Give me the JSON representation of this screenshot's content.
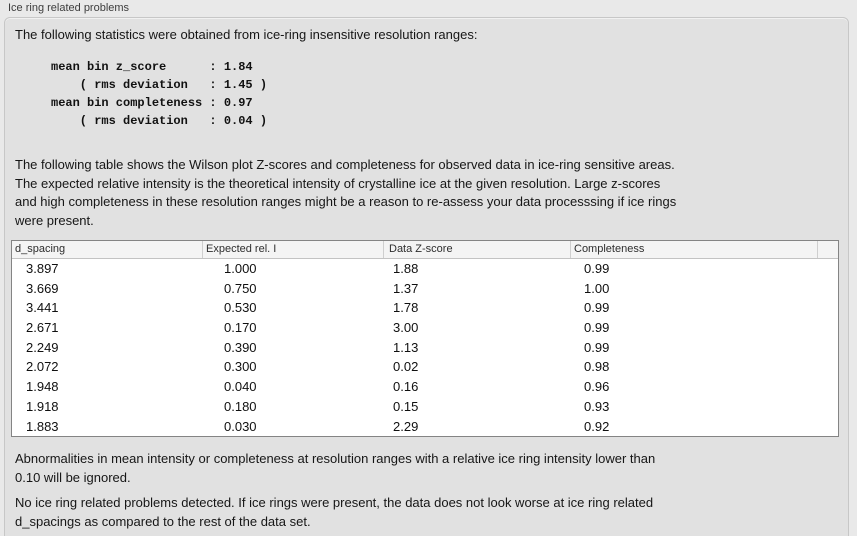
{
  "panel": {
    "title": "Ice ring related problems"
  },
  "stats": {
    "intro": "The following statistics were obtained from ice-ring insensitive resolution ranges:",
    "block": "mean bin z_score      : 1.84\n    ( rms deviation   : 1.45 )\nmean bin completeness : 0.97\n    ( rms deviation   : 0.04 )"
  },
  "description": "The following table shows the Wilson plot Z-scores and completeness for observed data in ice-ring sensitive areas.\nThe expected relative intensity is the theoretical intensity of crystalline ice at the given resolution. Large z-scores\nand high completeness in these resolution ranges might be a reason to re-assess your data processsing if ice rings\nwere present.",
  "table": {
    "headers": [
      "d_spacing",
      "Expected rel. I",
      "Data Z-score",
      "Completeness"
    ],
    "rows": [
      [
        "3.897",
        "1.000",
        "1.88",
        "0.99"
      ],
      [
        "3.669",
        "0.750",
        "1.37",
        "1.00"
      ],
      [
        "3.441",
        "0.530",
        "1.78",
        "0.99"
      ],
      [
        "2.671",
        "0.170",
        "3.00",
        "0.99"
      ],
      [
        "2.249",
        "0.390",
        "1.13",
        "0.99"
      ],
      [
        "2.072",
        "0.300",
        "0.02",
        "0.98"
      ],
      [
        "1.948",
        "0.040",
        "0.16",
        "0.96"
      ],
      [
        "1.918",
        "0.180",
        "0.15",
        "0.93"
      ],
      [
        "1.883",
        "0.030",
        "2.29",
        "0.92"
      ]
    ]
  },
  "notes": {
    "ignore_threshold": "Abnormalities in mean intensity or completeness at resolution ranges with a relative ice ring intensity lower than\n0.10 will be ignored.",
    "conclusion": "No ice ring related problems detected. If ice rings were present, the data does not look worse at ice ring related\nd_spacings as compared to the rest of the data set."
  }
}
